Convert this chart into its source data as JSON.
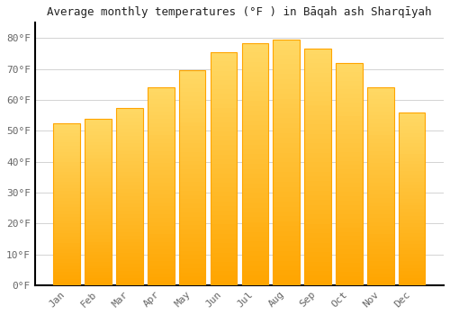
{
  "title": "Average monthly temperatures (°F ) in Bāqah ash Sharqīyah",
  "months": [
    "Jan",
    "Feb",
    "Mar",
    "Apr",
    "May",
    "Jun",
    "Jul",
    "Aug",
    "Sep",
    "Oct",
    "Nov",
    "Dec"
  ],
  "values": [
    52.5,
    54.0,
    57.5,
    64.0,
    69.5,
    75.5,
    78.5,
    79.5,
    76.5,
    72.0,
    64.0,
    56.0
  ],
  "bar_color_top": "#FFD966",
  "bar_color_bottom": "#FFA500",
  "bar_color_mid": "#FFC020",
  "background_color": "#FFFFFF",
  "grid_color": "#CCCCCC",
  "text_color": "#666666",
  "spine_color": "#000000",
  "ylim": [
    0,
    85
  ],
  "yticks": [
    0,
    10,
    20,
    30,
    40,
    50,
    60,
    70,
    80
  ],
  "title_fontsize": 9,
  "tick_fontsize": 8,
  "bar_width": 0.85
}
